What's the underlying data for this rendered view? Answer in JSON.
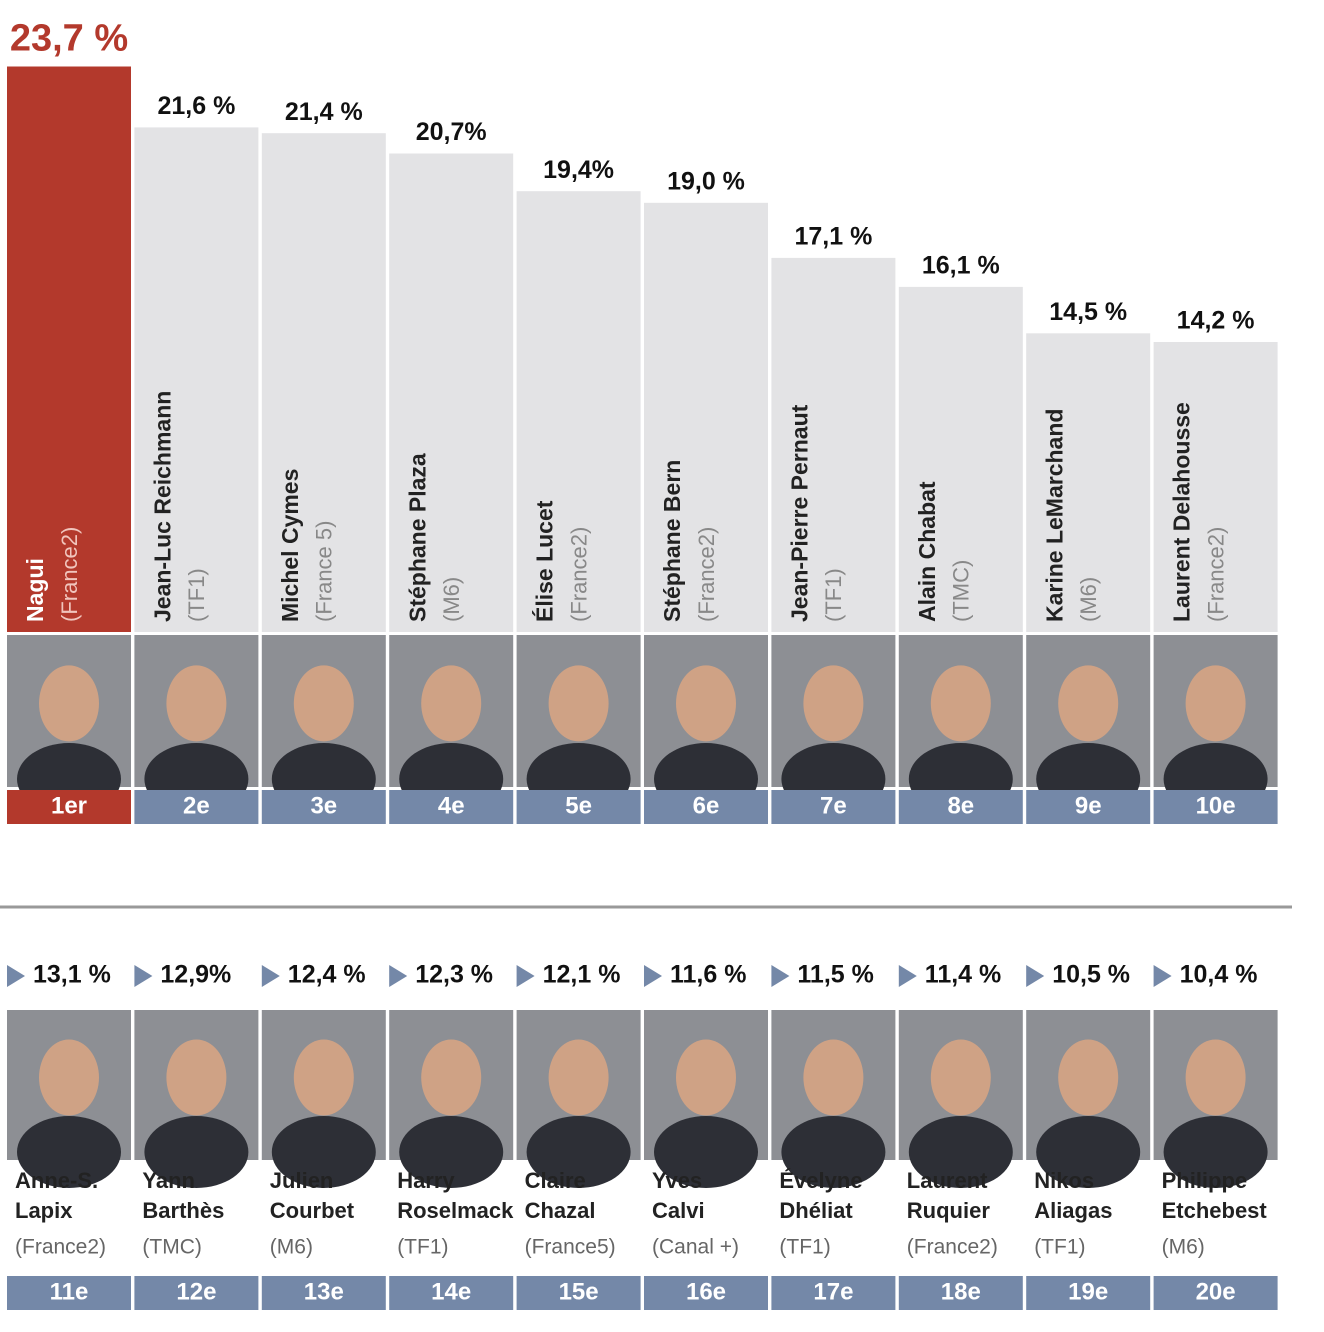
{
  "chart_data": [
    {
      "type": "bar",
      "categories": [
        "Nagui",
        "Jean-Luc Reichmann",
        "Michel Cymes",
        "Stéphane Plaza",
        "Élise Lucet",
        "Stéphane Bern",
        "Jean-Pierre Pernaut",
        "Alain Chabat",
        "Karine LeMarchand",
        "Laurent Delahousse"
      ],
      "channels": [
        "(France2)",
        "(TF1)",
        "(France 5)",
        "(M6)",
        "(France2)",
        "(France2)",
        "(TF1)",
        "(TMC)",
        "(M6)",
        "(France2)"
      ],
      "ranks": [
        "1er",
        "2e",
        "3e",
        "4e",
        "5e",
        "6e",
        "7e",
        "8e",
        "9e",
        "10e"
      ],
      "values": [
        23.7,
        21.6,
        21.4,
        20.7,
        19.4,
        19.0,
        17.1,
        16.1,
        14.5,
        14.2
      ],
      "value_labels": [
        "23,7 %",
        "21,6 %",
        "21,4 %",
        "20,7%",
        "19,4%",
        "19,0 %",
        "17,1 %",
        "16,1 %",
        "14,5 %",
        "14,2 %"
      ],
      "ylim": [
        4.2,
        24.2
      ],
      "color": "#e3e3e5",
      "highlight_color": "#b3392c",
      "rank_color": "#7488a8"
    },
    {
      "type": "ranking",
      "names": [
        [
          "Anne-S.",
          "Lapix"
        ],
        [
          "Yann",
          "Barthès"
        ],
        [
          "Julien",
          "Courbet"
        ],
        [
          "Harry",
          "Roselmack"
        ],
        [
          "Claire",
          "Chazal"
        ],
        [
          "Yves",
          "Calvi"
        ],
        [
          "Évelyne",
          "Dhéliat"
        ],
        [
          "Laurent",
          "Ruquier"
        ],
        [
          "Nikos",
          "Aliagas"
        ],
        [
          "Philippe",
          "Etchebest"
        ]
      ],
      "channels": [
        "(France2)",
        "(TMC)",
        "(M6)",
        "(TF1)",
        "(France5)",
        "(Canal +)",
        "(TF1)",
        "(France2)",
        "(TF1)",
        "(M6)"
      ],
      "ranks": [
        "11e",
        "12e",
        "13e",
        "14e",
        "15e",
        "16e",
        "17e",
        "18e",
        "19e",
        "20e"
      ],
      "values": [
        13.1,
        12.9,
        12.4,
        12.3,
        12.1,
        11.6,
        11.5,
        11.4,
        10.5,
        10.4
      ],
      "value_labels": [
        "13,1 %",
        "12,9%",
        "12,4 %",
        "12,3 %",
        "12,1 %",
        "11,6 %",
        "11,5 %",
        "11,4 %",
        "10,5 %",
        "10,4 %"
      ],
      "rank_color": "#7488a8"
    }
  ]
}
